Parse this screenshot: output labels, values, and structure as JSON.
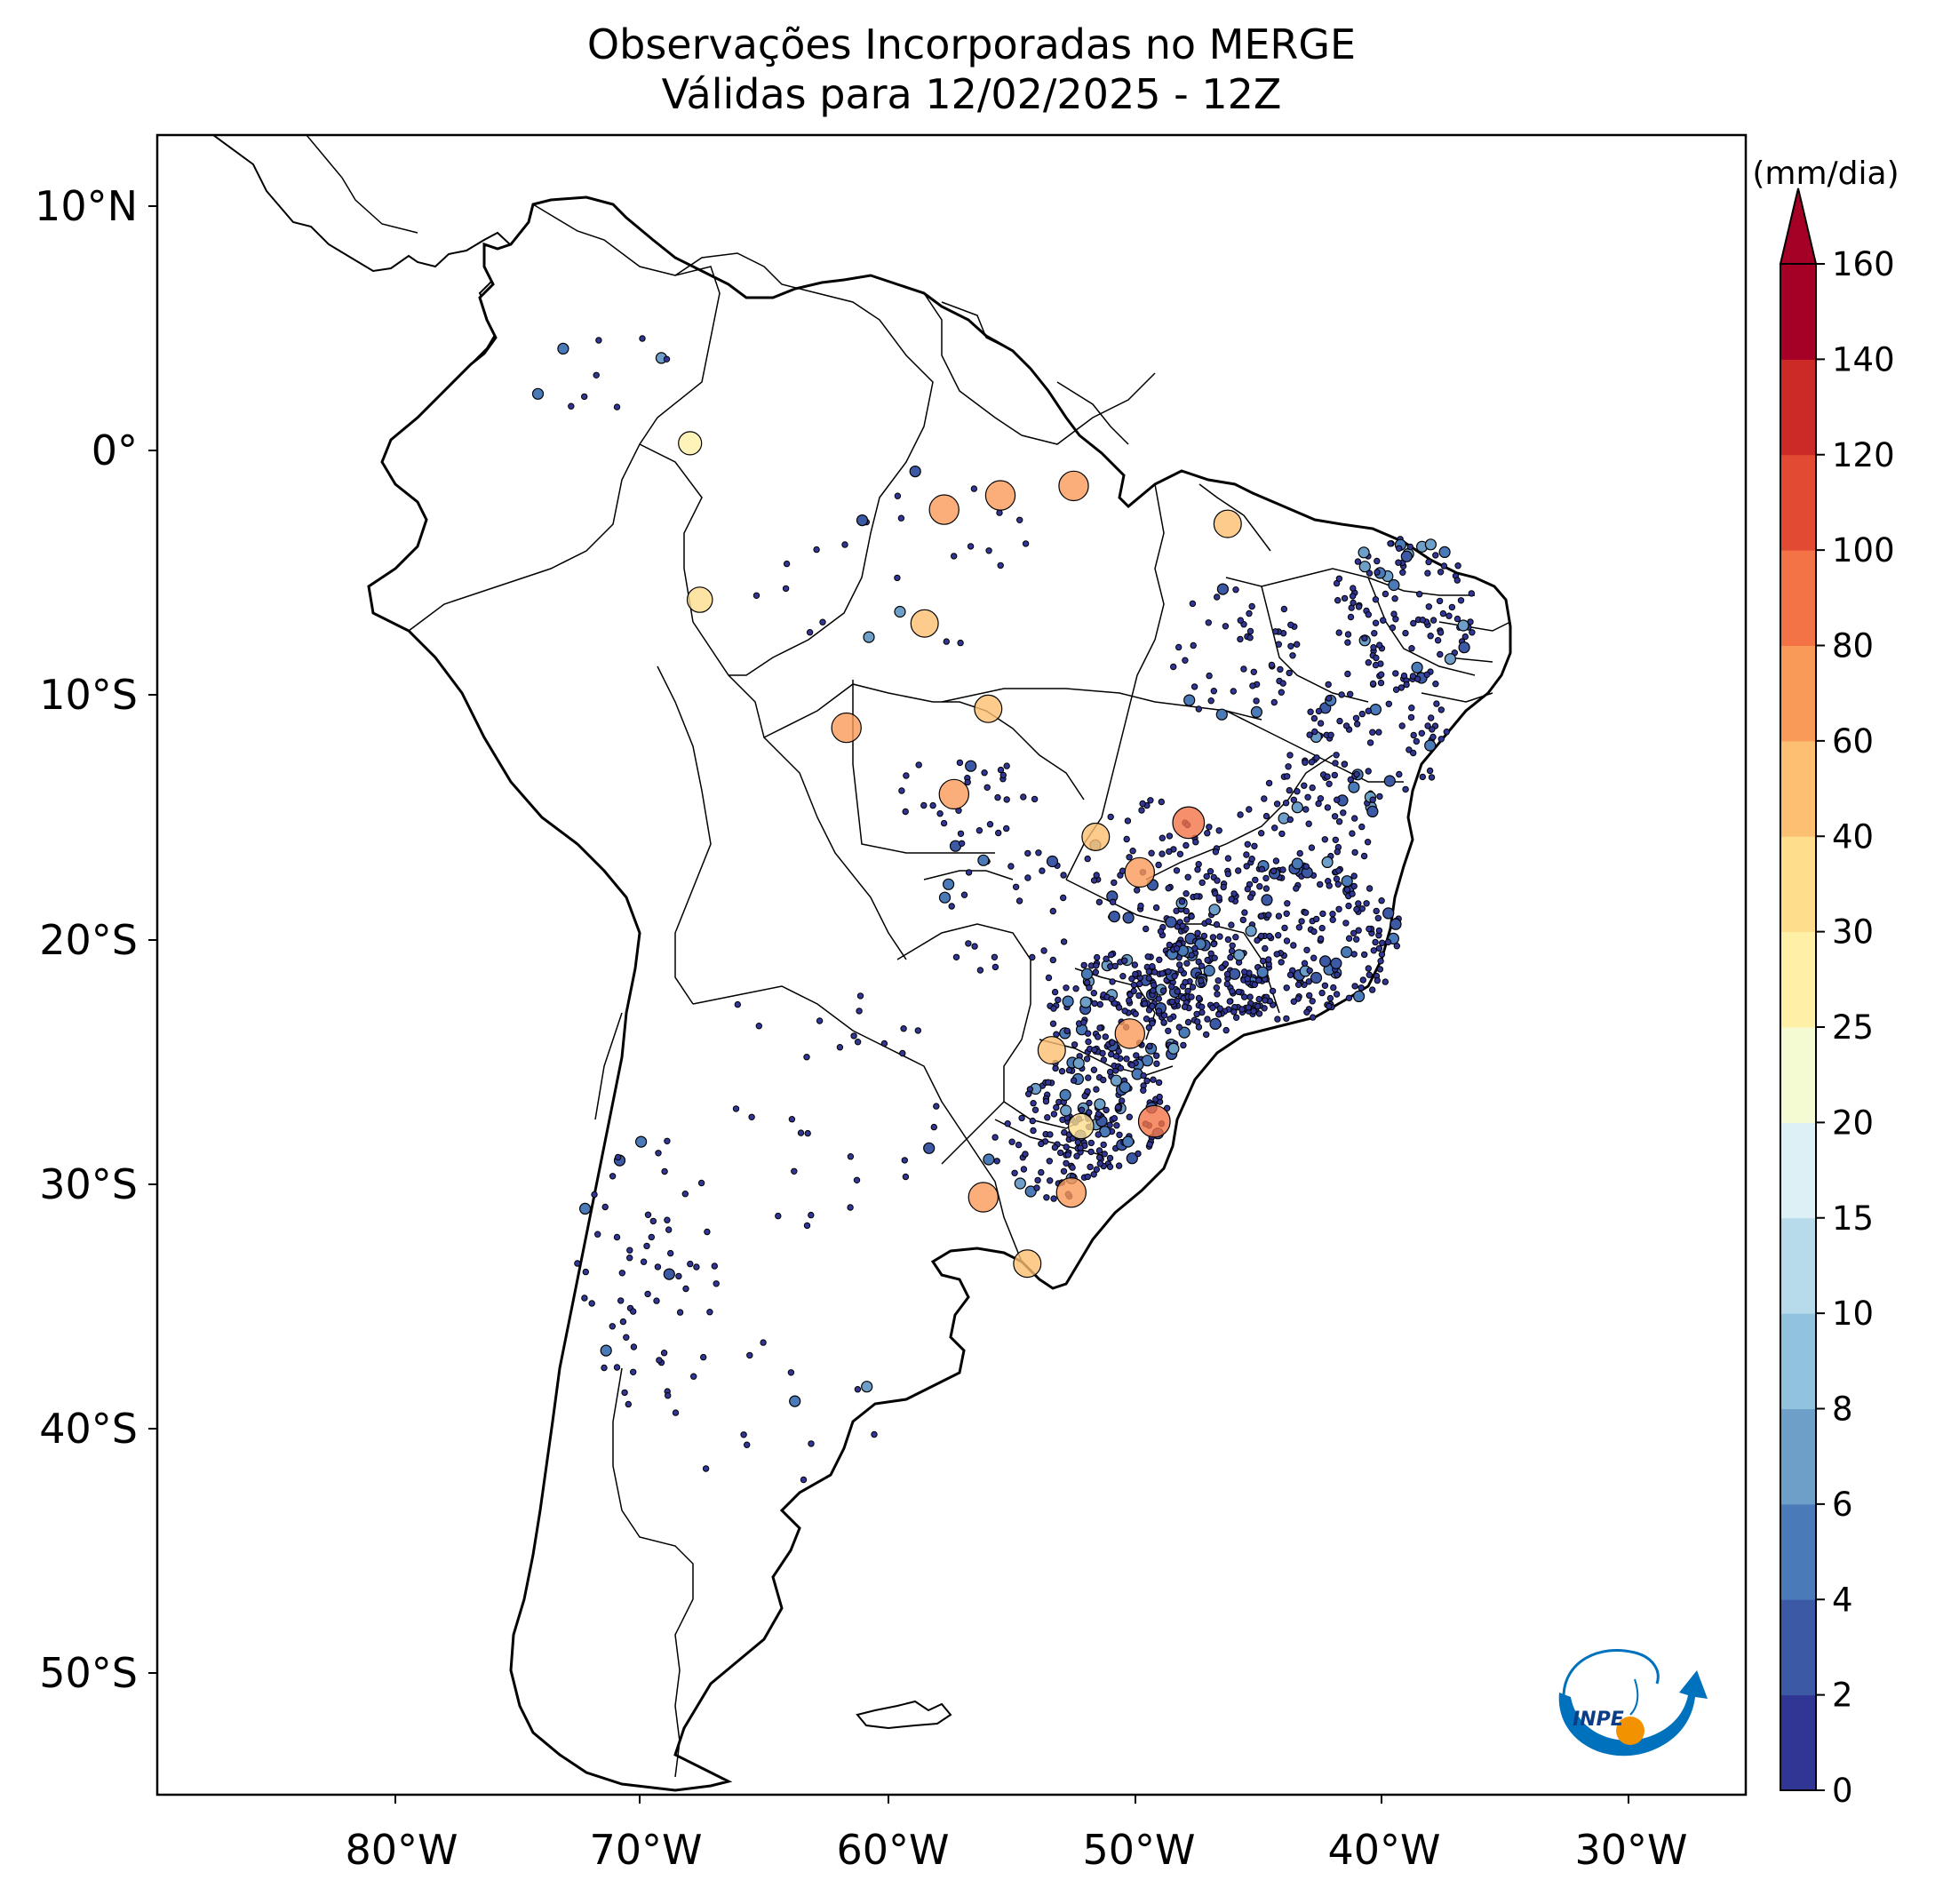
{
  "title": {
    "line1": "Observações Incorporadas no MERGE",
    "line2": "Válidas para 12/02/2025 - 12Z"
  },
  "axes": {
    "lon_ticks": [
      "80°W",
      "70°W",
      "60°W",
      "50°W",
      "40°W",
      "30°W"
    ],
    "lat_ticks": [
      "10°N",
      "0°",
      "10°S",
      "20°S",
      "30°S",
      "40°S",
      "50°S"
    ]
  },
  "colorbar": {
    "unit": "(mm/dia)",
    "levels": [
      "0",
      "2",
      "4",
      "6",
      "8",
      "10",
      "15",
      "20",
      "25",
      "30",
      "40",
      "60",
      "80",
      "100",
      "120",
      "140",
      "160"
    ],
    "colors": [
      "#313695",
      "#3c59a6",
      "#4a7ab7",
      "#6d9fc9",
      "#91c2de",
      "#b7dbea",
      "#ddf0f6",
      "#f4fad2",
      "#fff0a8",
      "#fedd8d",
      "#fdbf71",
      "#fa9a58",
      "#f47346",
      "#e34a33",
      "#cc2a27",
      "#a50026"
    ]
  },
  "logo": {
    "text": "INPE",
    "colors": {
      "primary": "#0071bc",
      "accent": "#f39200"
    }
  },
  "map": {
    "land_color": "#ffffff",
    "coastline_color": "#000000",
    "stations_sample": [
      {
        "lon": -55.5,
        "lat": -2.2,
        "class": 11
      },
      {
        "lon": -57.8,
        "lat": -2.8,
        "class": 11
      },
      {
        "lon": -52.5,
        "lat": -1.8,
        "class": 11
      },
      {
        "lon": -47.8,
        "lat": -16.0,
        "class": 12
      },
      {
        "lon": -49.2,
        "lat": -28.6,
        "class": 12
      },
      {
        "lon": -50.2,
        "lat": -24.9,
        "class": 11
      },
      {
        "lon": -52.6,
        "lat": -31.6,
        "class": 11
      },
      {
        "lon": -56.2,
        "lat": -31.8,
        "class": 11
      },
      {
        "lon": -58.6,
        "lat": -7.6,
        "class": 10
      },
      {
        "lon": -57.4,
        "lat": -14.8,
        "class": 11
      },
      {
        "lon": -61.8,
        "lat": -12.0,
        "class": 11
      },
      {
        "lon": -56.0,
        "lat": -11.2,
        "class": 10
      },
      {
        "lon": -54.4,
        "lat": -34.6,
        "class": 10
      },
      {
        "lon": -67.8,
        "lat": -6.6,
        "class": 9
      },
      {
        "lon": -68.2,
        "lat": 0.0,
        "class": 8
      },
      {
        "lon": -46.2,
        "lat": -3.4,
        "class": 10
      },
      {
        "lon": -49.8,
        "lat": -18.1,
        "class": 11
      },
      {
        "lon": -51.6,
        "lat": -16.6,
        "class": 10
      },
      {
        "lon": -53.4,
        "lat": -25.6,
        "class": 10
      },
      {
        "lon": -52.2,
        "lat": -28.8,
        "class": 9
      }
    ]
  }
}
